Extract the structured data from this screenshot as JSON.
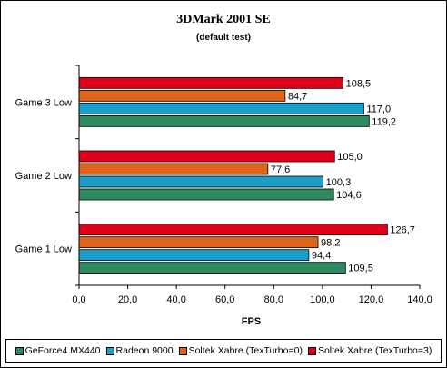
{
  "chart_data": {
    "type": "bar",
    "orientation": "horizontal",
    "title": "3DMark 2001 SE",
    "subtitle": "(default test)",
    "xlabel": "FPS",
    "xlim": [
      0,
      140
    ],
    "xticks": [
      "0,0",
      "20,0",
      "40,0",
      "60,0",
      "80,0",
      "100,0",
      "120,0",
      "140,0"
    ],
    "categories": [
      "Game 3 Low",
      "Game 2 Low",
      "Game 1 Low"
    ],
    "series": [
      {
        "name": "Soltek Xabre (TexTurbo=3)",
        "color": "#e0001a",
        "values": [
          108.5,
          105.0,
          126.7
        ],
        "labels": [
          "108,5",
          "105,0",
          "126,7"
        ]
      },
      {
        "name": "Soltek Xabre (TexTurbo=0)",
        "color": "#e0641a",
        "values": [
          84.7,
          77.6,
          98.2
        ],
        "labels": [
          "84,7",
          "77,6",
          "98,2"
        ]
      },
      {
        "name": "Radeon 9000",
        "color": "#1aa0c8",
        "values": [
          117.0,
          100.3,
          94.4
        ],
        "labels": [
          "117,0",
          "100,3",
          "94,4"
        ]
      },
      {
        "name": "GeForce4 MX440",
        "color": "#2e8a60",
        "values": [
          119.2,
          104.6,
          109.5
        ],
        "labels": [
          "119,2",
          "104,6",
          "109,5"
        ]
      }
    ],
    "legend": [
      "GeForce4 MX440",
      "Radeon 9000",
      "Soltek Xabre (TexTurbo=0)",
      "Soltek Xabre (TexTurbo=3)"
    ],
    "legend_placement": "bottom",
    "grid": false
  }
}
